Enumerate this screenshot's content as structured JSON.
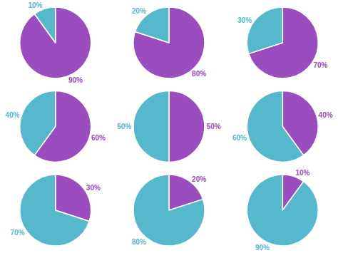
{
  "chart_data": [
    {
      "type": "pie",
      "values": [
        90,
        10
      ],
      "value_labels": [
        "90%",
        "10%"
      ],
      "colors": [
        "#9B4DC0",
        "#55B8CC"
      ],
      "data_labels": true
    },
    {
      "type": "pie",
      "values": [
        80,
        20
      ],
      "value_labels": [
        "80%",
        "20%"
      ],
      "colors": [
        "#9B4DC0",
        "#55B8CC"
      ],
      "data_labels": true
    },
    {
      "type": "pie",
      "values": [
        70,
        30
      ],
      "value_labels": [
        "70%",
        "30%"
      ],
      "colors": [
        "#9B4DC0",
        "#55B8CC"
      ],
      "data_labels": true
    },
    {
      "type": "pie",
      "values": [
        60,
        40
      ],
      "value_labels": [
        "60%",
        "40%"
      ],
      "colors": [
        "#9B4DC0",
        "#55B8CC"
      ],
      "data_labels": true
    },
    {
      "type": "pie",
      "values": [
        50,
        50
      ],
      "value_labels": [
        "50%",
        "50%"
      ],
      "colors": [
        "#9B4DC0",
        "#55B8CC"
      ],
      "data_labels": true
    },
    {
      "type": "pie",
      "values": [
        40,
        60
      ],
      "value_labels": [
        "40%",
        "60%"
      ],
      "colors": [
        "#9B4DC0",
        "#55B8CC"
      ],
      "data_labels": true
    },
    {
      "type": "pie",
      "values": [
        30,
        70
      ],
      "value_labels": [
        "30%",
        "70%"
      ],
      "colors": [
        "#9B4DC0",
        "#55B8CC"
      ],
      "data_labels": true
    },
    {
      "type": "pie",
      "values": [
        20,
        80
      ],
      "value_labels": [
        "20%",
        "80%"
      ],
      "colors": [
        "#9B4DC0",
        "#55B8CC"
      ],
      "data_labels": true
    },
    {
      "type": "pie",
      "values": [
        10,
        90
      ],
      "value_labels": [
        "10%",
        "90%"
      ],
      "colors": [
        "#9B4DC0",
        "#55B8CC"
      ],
      "data_labels": true
    }
  ]
}
